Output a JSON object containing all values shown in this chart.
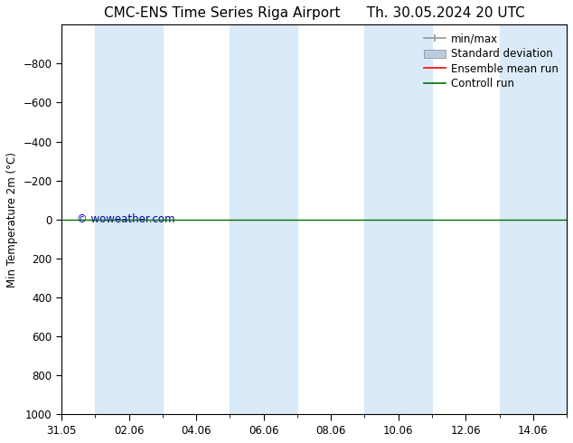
{
  "title": "CMC-ENS Time Series Riga Airport",
  "title2": "Th. 30.05.2024 20 UTC",
  "ylabel": "Min Temperature 2m (°C)",
  "ylim_bottom": -1000,
  "ylim_top": 1000,
  "yticks": [
    -800,
    -600,
    -400,
    -200,
    0,
    200,
    400,
    600,
    800,
    1000
  ],
  "x_ticks_labels": [
    "31.05",
    "02.06",
    "04.06",
    "06.06",
    "08.06",
    "10.06",
    "12.06",
    "14.06"
  ],
  "x_tick_positions": [
    0,
    2,
    4,
    6,
    8,
    10,
    12,
    14
  ],
  "xlim": [
    0,
    15
  ],
  "shaded_bands": [
    [
      1,
      3
    ],
    [
      5,
      7
    ],
    [
      9,
      11
    ],
    [
      13,
      15
    ]
  ],
  "control_run_y": 0,
  "control_run_color": "#007000",
  "ensemble_mean_color": "#ff0000",
  "min_max_color": "#999999",
  "std_dev_color": "#bbccdd",
  "band_color": "#daeaf8",
  "watermark": "© woweather.com",
  "watermark_color": "#0000bb",
  "background_color": "#ffffff",
  "legend_labels": [
    "min/max",
    "Standard deviation",
    "Ensemble mean run",
    "Controll run"
  ],
  "legend_colors": [
    "#999999",
    "#bbccdd",
    "#ff0000",
    "#007000"
  ],
  "font_size": 8.5,
  "title_fontsize": 11
}
